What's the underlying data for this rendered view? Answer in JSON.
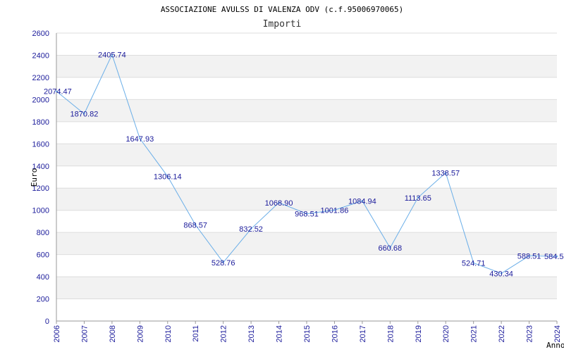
{
  "chart_data": {
    "type": "line",
    "title": "ASSOCIAZIONE AVULSS DI VALENZA ODV (c.f.95006970065)",
    "subtitle": "Importi",
    "ylabel": "Euro",
    "xlabel": "Anno",
    "ylim": [
      0,
      2600
    ],
    "yticks": [
      0,
      200,
      400,
      600,
      800,
      1000,
      1200,
      1400,
      1600,
      1800,
      2000,
      2200,
      2400,
      2600
    ],
    "grid": true,
    "line_color": "#6aaee8",
    "band_color": "#f2f2f2",
    "tick_color": "#1a1a9a",
    "x": [
      "2006",
      "2007",
      "2008",
      "2009",
      "2010",
      "2011",
      "2012",
      "2013",
      "2014",
      "2015",
      "2016",
      "2017",
      "2018",
      "2019",
      "2020",
      "2021",
      "2022",
      "2023",
      "2024"
    ],
    "values": [
      2074.47,
      1870.82,
      2405.74,
      1647.93,
      1306.14,
      868.57,
      528.76,
      832.52,
      1068.9,
      968.51,
      1001.86,
      1084.94,
      660.68,
      1113.65,
      1338.57,
      524.71,
      430.34,
      588.51,
      584.5
    ],
    "data_labels": [
      "2074.47",
      "1870.82",
      "2405.74",
      "1647.93",
      "1306.14",
      "868.57",
      "528.76",
      "832.52",
      "1068.90",
      "968.51",
      "1001.86",
      "1084.94",
      "660.68",
      "1113.65",
      "1338.57",
      "524.71",
      "430.34",
      "588.51",
      "584.5"
    ]
  }
}
